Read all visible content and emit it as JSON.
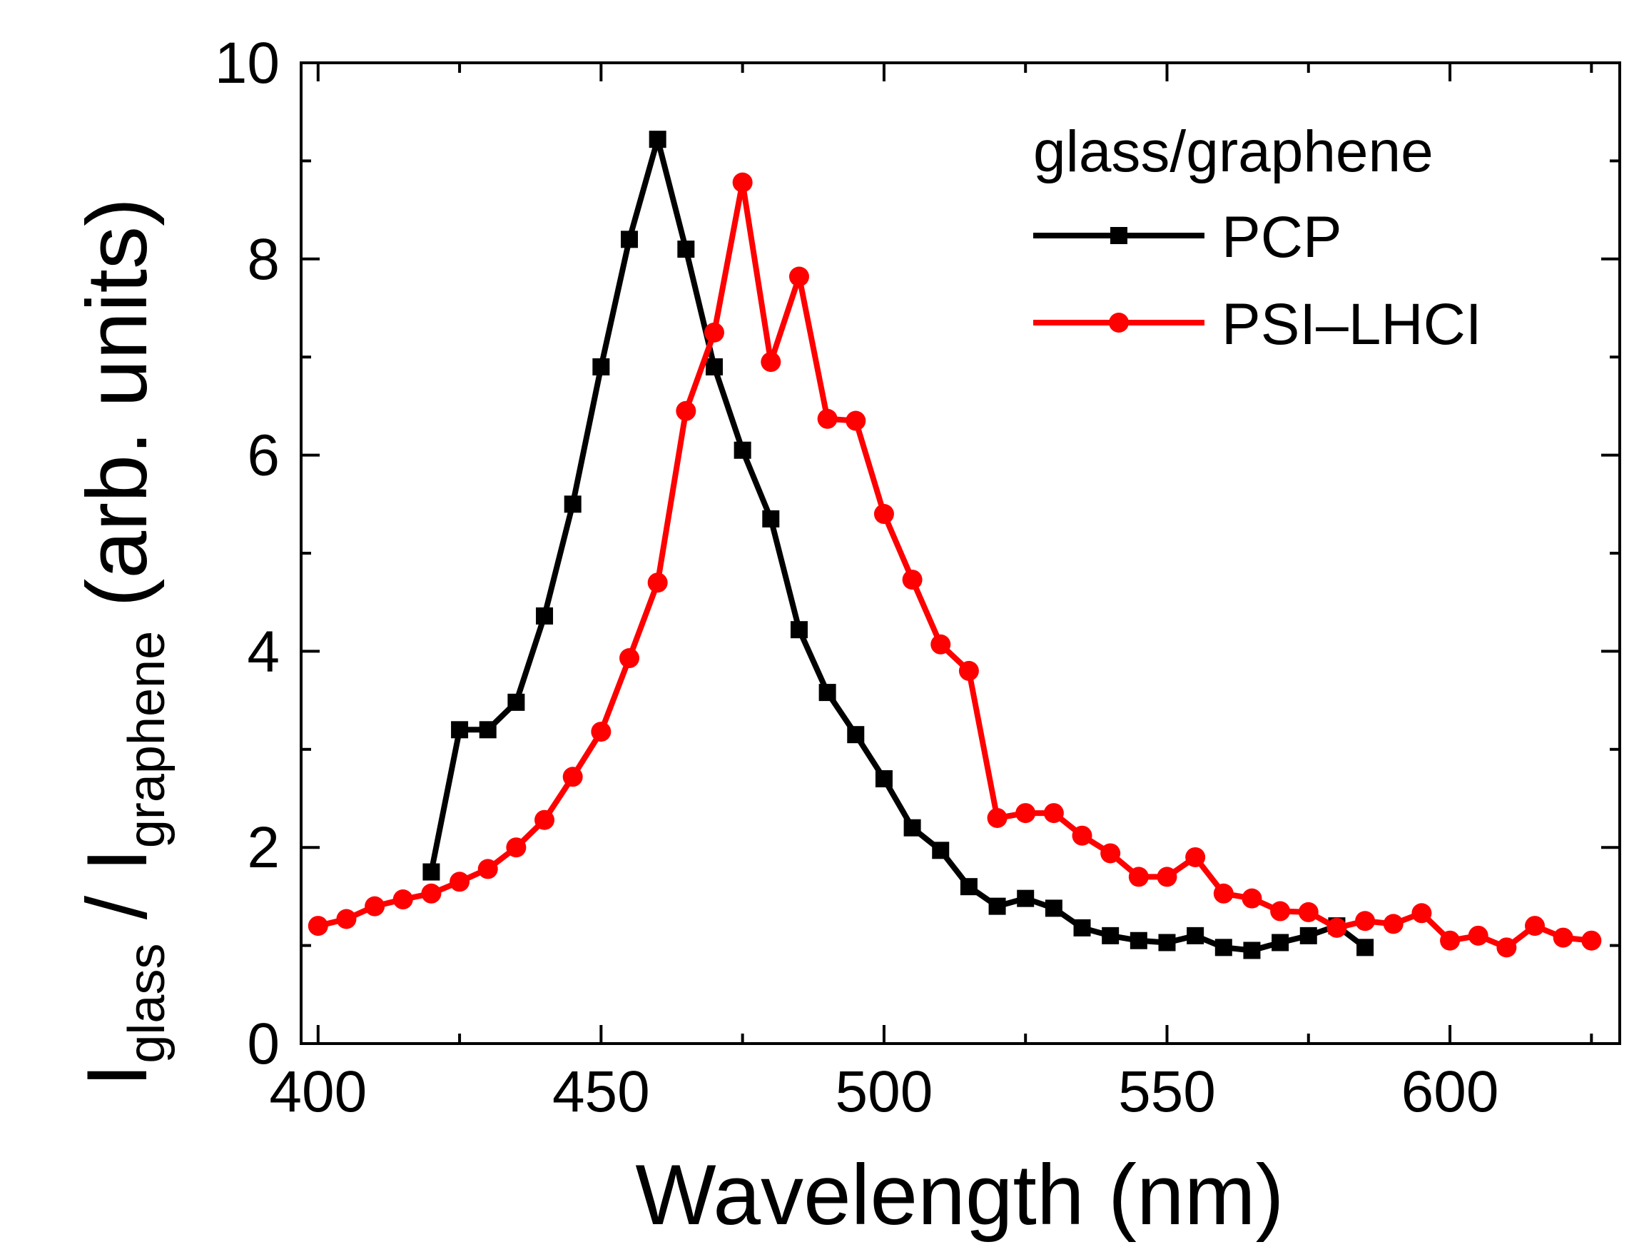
{
  "chart_data": {
    "type": "line",
    "xlabel": "Wavelength (nm)",
    "ylabel": {
      "I1": "I",
      "sub1": "glass",
      "sep": " / ",
      "I2": "I",
      "sub2": "graphene",
      "units": " (arb. units)"
    },
    "xlim": [
      397,
      630
    ],
    "ylim": [
      0,
      10
    ],
    "x_ticks": [
      400,
      450,
      500,
      550,
      600
    ],
    "x_tick_labels": [
      "400",
      "450",
      "500",
      "550",
      "600"
    ],
    "x_minor_ticks": [
      425,
      475,
      525,
      575,
      625
    ],
    "y_ticks": [
      0,
      2,
      4,
      6,
      8,
      10
    ],
    "y_tick_labels": [
      "0",
      "2",
      "4",
      "6",
      "8",
      "10"
    ],
    "y_minor_ticks": [
      1,
      3,
      5,
      7,
      9
    ],
    "legend": {
      "title": "glass/graphene",
      "placement": "top-right"
    },
    "series": [
      {
        "name": "PCP",
        "color": "#000000",
        "marker": "square",
        "x": [
          420,
          425,
          430,
          435,
          440,
          445,
          450,
          455,
          460,
          465,
          470,
          475,
          480,
          485,
          490,
          495,
          500,
          505,
          510,
          515,
          520,
          525,
          530,
          535,
          540,
          545,
          550,
          555,
          560,
          565,
          570,
          575,
          580,
          585
        ],
        "y": [
          1.75,
          3.2,
          3.2,
          3.48,
          4.36,
          5.5,
          6.9,
          8.2,
          9.22,
          8.1,
          6.9,
          6.05,
          5.35,
          4.22,
          3.58,
          3.15,
          2.7,
          2.2,
          1.97,
          1.6,
          1.4,
          1.48,
          1.38,
          1.18,
          1.1,
          1.05,
          1.03,
          1.1,
          0.98,
          0.95,
          1.03,
          1.1,
          1.2,
          0.98
        ]
      },
      {
        "name": "PSI–LHCI",
        "color": "#ff0000",
        "marker": "circle",
        "x": [
          400,
          405,
          410,
          415,
          420,
          425,
          430,
          435,
          440,
          445,
          450,
          455,
          460,
          465,
          470,
          475,
          480,
          485,
          490,
          495,
          500,
          505,
          510,
          515,
          520,
          525,
          530,
          535,
          540,
          545,
          550,
          555,
          560,
          565,
          570,
          575,
          580,
          585,
          590,
          595,
          600,
          605,
          610,
          615,
          620,
          625
        ],
        "y": [
          1.2,
          1.27,
          1.4,
          1.47,
          1.53,
          1.65,
          1.78,
          2.0,
          2.28,
          2.72,
          3.18,
          3.93,
          4.7,
          6.45,
          7.25,
          8.78,
          6.95,
          7.82,
          6.37,
          6.35,
          5.4,
          4.73,
          4.07,
          3.8,
          2.3,
          2.35,
          2.35,
          2.12,
          1.94,
          1.7,
          1.7,
          1.9,
          1.53,
          1.48,
          1.35,
          1.34,
          1.18,
          1.25,
          1.22,
          1.33,
          1.05,
          1.1,
          0.98,
          1.2,
          1.08,
          1.05
        ]
      }
    ]
  }
}
